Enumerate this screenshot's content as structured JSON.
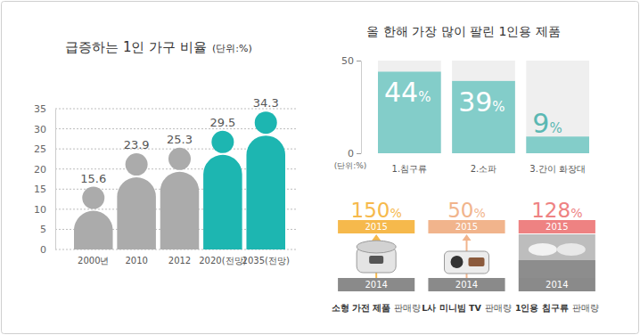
{
  "chart_data": [
    {
      "type": "bar",
      "title": "급증하는 1인 가구 비율",
      "subtitle": "(단위:%)",
      "categories": [
        "2000년",
        "2010",
        "2012",
        "2020(전망)",
        "2035(전망)"
      ],
      "values": [
        15.6,
        23.9,
        25.3,
        29.5,
        34.3
      ],
      "colors": [
        "#ababab",
        "#ababab",
        "#ababab",
        "#1db6b1",
        "#1db6b1"
      ],
      "ylim": [
        0,
        35
      ],
      "yticks": [
        0,
        5,
        10,
        15,
        20,
        25,
        30,
        35
      ],
      "grid": true,
      "data_labels": true,
      "marker": "person"
    },
    {
      "type": "bar",
      "title": "올 한해 가장 많이 팔린 1인용 제품",
      "categories": [
        "1.침구류",
        "2.소파",
        "3.간이 화장대"
      ],
      "values": [
        44,
        39,
        9
      ],
      "value_labels": [
        "44%",
        "39%",
        "9%"
      ],
      "color": "#83cdc9",
      "ylim": [
        0,
        50
      ],
      "yticks": [
        0,
        50
      ],
      "ylabel": "(단위:%)",
      "data_labels": true
    },
    {
      "type": "growth",
      "categories": [
        "소형 가전 제품",
        "L사 미니빔 TV",
        "1인용 침구류"
      ],
      "caption_suffix": "판매량",
      "values": [
        150,
        50,
        128
      ],
      "value_labels": [
        "150%",
        "50%",
        "128%"
      ],
      "colors": [
        "#f6b94c",
        "#f1b48c",
        "#ee8282"
      ],
      "periods": [
        "2014",
        "2015"
      ],
      "data_labels": true
    }
  ]
}
